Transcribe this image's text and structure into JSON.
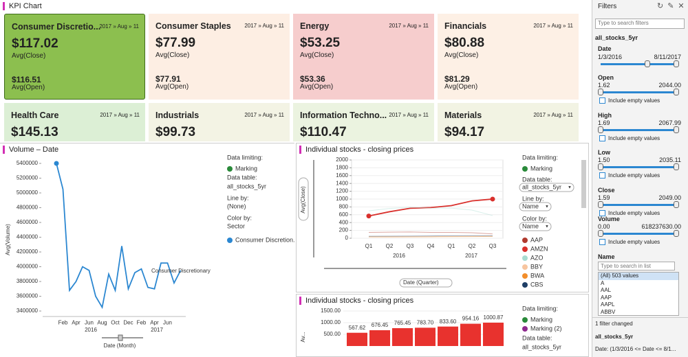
{
  "header": {
    "title": "KPI Chart"
  },
  "kpi": {
    "tiles": [
      {
        "name": "Consumer Discretio...",
        "date": "2017 » Aug » 11",
        "value": "$117.02",
        "value_label": "Avg(Close)",
        "open": "$116.51",
        "open_label": "Avg(Open)",
        "color": "#8cbf4f"
      },
      {
        "name": "Consumer Staples",
        "date": "2017 » Aug » 11",
        "value": "$77.99",
        "value_label": "Avg(Close)",
        "open": "$77.91",
        "open_label": "Avg(Open)",
        "color": "#fdeee3"
      },
      {
        "name": "Energy",
        "date": "2017 » Aug » 11",
        "value": "$53.25",
        "value_label": "Avg(Close)",
        "open": "$53.36",
        "open_label": "Avg(Open)",
        "color": "#f6cdcd"
      },
      {
        "name": "Financials",
        "date": "2017 » Aug » 11",
        "value": "$80.88",
        "value_label": "Avg(Close)",
        "open": "$81.29",
        "open_label": "Avg(Open)",
        "color": "#fdf0e5"
      },
      {
        "name": "Health Care",
        "date": "2017 » Aug » 11",
        "value": "$145.13",
        "color": "#dcefd5"
      },
      {
        "name": "Industrials",
        "date": "2017 » Aug » 11",
        "value": "$99.73",
        "color": "#f3f3e4"
      },
      {
        "name": "Information Techno...",
        "date": "2017 » Aug » 11",
        "value": "$110.47",
        "color": "#ebf3e0"
      },
      {
        "name": "Materials",
        "date": "2017 » Aug » 11",
        "value": "$94.17",
        "color": "#f2f3e3"
      }
    ]
  },
  "chart_data": [
    {
      "type": "line",
      "title": "Volume – Date",
      "y_label": "Avg(Volume)",
      "x_label": "Date (Month)",
      "categories": [
        null,
        "Feb",
        null,
        "Apr",
        null,
        "Jun",
        null,
        "Aug",
        null,
        "Oct",
        null,
        "Dec",
        null,
        "Feb",
        null,
        "Apr",
        null,
        "Jun",
        null,
        null
      ],
      "groups": [
        "2016",
        "2017"
      ],
      "series": [
        {
          "name": "Consumer Discretion...",
          "color": "#2b87d1",
          "values": [
            5400000,
            5050000,
            3680000,
            3800000,
            4000000,
            3950000,
            3600000,
            3450000,
            3900000,
            3680000,
            4280000,
            3700000,
            3920000,
            3970000,
            3720000,
            3700000,
            4050000,
            4050000,
            3780000,
            3950000
          ]
        }
      ],
      "annotation": "Consumer Discretionary",
      "ylim": [
        3350000,
        5450000
      ],
      "yticks": [
        3400000,
        3600000,
        3800000,
        4000000,
        4200000,
        4400000,
        4600000,
        4800000,
        5000000,
        5200000,
        5400000
      ],
      "legend": {
        "limiting_label": "Data limiting:",
        "marking": "Marking",
        "table_label": "Data table:",
        "table": "all_stocks_5yr",
        "line_by_label": "Line by:",
        "line_by": "(None)",
        "color_by_label": "Color by:",
        "color_by": "Sector"
      }
    },
    {
      "type": "line",
      "title": "Individual stocks - closing prices",
      "y_label": "Avg(Close)",
      "x_label": "Date (Quarter)",
      "categories": [
        "Q1",
        "Q2",
        "Q3",
        "Q4",
        "Q1",
        "Q2",
        "Q3"
      ],
      "groups": [
        "2016",
        "2017"
      ],
      "series": [
        {
          "name": "AAP",
          "color": "#b03a2e",
          "values": [
            150,
            155,
            160,
            150,
            150,
            140,
            110
          ]
        },
        {
          "name": "AMZN",
          "color": "#d9302c",
          "marked": true,
          "values": [
            567.62,
            676.45,
            765.45,
            783.7,
            833.6,
            954.16,
            1000.87
          ]
        },
        {
          "name": "AZO",
          "color": "#a8dcd1",
          "values": [
            700,
            760,
            790,
            770,
            770,
            720,
            580
          ]
        },
        {
          "name": "BBY",
          "color": "#f7c59f",
          "values": [
            32,
            30,
            35,
            42,
            45,
            50,
            55
          ]
        },
        {
          "name": "BWA",
          "color": "#f28e2b",
          "values": [
            35,
            34,
            36,
            35,
            40,
            42,
            45
          ]
        },
        {
          "name": "CBS",
          "color": "#1f3f66",
          "values": [
            50,
            52,
            55,
            60,
            63,
            65,
            62
          ]
        }
      ],
      "ylim": [
        0,
        2000
      ],
      "yticks": [
        0,
        200,
        400,
        600,
        800,
        1000,
        1200,
        1400,
        1600,
        1800,
        2000
      ],
      "legend": {
        "limiting_label": "Data limiting:",
        "marking": "Marking",
        "table_label": "Data table:",
        "table": "all_stocks_5yr",
        "line_by_label": "Line by:",
        "line_by": "Name",
        "color_by_label": "Color by:",
        "color_by": "Name"
      }
    },
    {
      "type": "bar",
      "title": "Individual stocks - closing prices",
      "y_label": "Av...",
      "color": "#e8322e",
      "values": [
        567.62,
        676.45,
        765.45,
        783.7,
        833.6,
        954.16,
        1000.87
      ],
      "value_labels": [
        "567.62",
        "676.45",
        "765.45",
        "783.70",
        "833.60",
        "954.16",
        "1000.87"
      ],
      "ylim": [
        0,
        1500
      ],
      "yticks": [
        {
          "value": 500,
          "label": "500.00"
        },
        {
          "value": 1000,
          "label": "1000.00"
        },
        {
          "value": 1500,
          "label": "1500.00"
        }
      ],
      "legend": {
        "limiting_label": "Data limiting:",
        "marking": "Marking",
        "marking2": "Marking (2)",
        "table_label": "Data table:",
        "table": "all_stocks_5yr"
      }
    }
  ],
  "filters": {
    "title": "Filters",
    "search_placeholder": "Type to search filters",
    "table": "all_stocks_5yr",
    "date": {
      "label": "Date",
      "min": "1/3/2016",
      "max": "8/11/2017"
    },
    "ranges": [
      {
        "label": "Open",
        "min": "1.62",
        "max": "2044.00",
        "include": "Include empty values"
      },
      {
        "label": "High",
        "min": "1.69",
        "max": "2067.99",
        "include": "Include empty values"
      },
      {
        "label": "Low",
        "min": "1.50",
        "max": "2035.11",
        "include": "Include empty values"
      },
      {
        "label": "Close",
        "min": "1.59",
        "max": "2049.00",
        "include": "Include empty values"
      },
      {
        "label": "Volume",
        "min": "0.00",
        "max": "618237630.00",
        "include": "Include empty values"
      }
    ],
    "name": {
      "label": "Name",
      "search_placeholder": "Type to search in list",
      "items": [
        "(All) 503 values",
        "A",
        "AAL",
        "AAP",
        "AAPL",
        "ABBV"
      ]
    },
    "footer": {
      "status": "1 filter changed",
      "table": "all_stocks_5yr",
      "summary": "Date: (1/3/2016 <= Date <= 8/1..."
    }
  }
}
